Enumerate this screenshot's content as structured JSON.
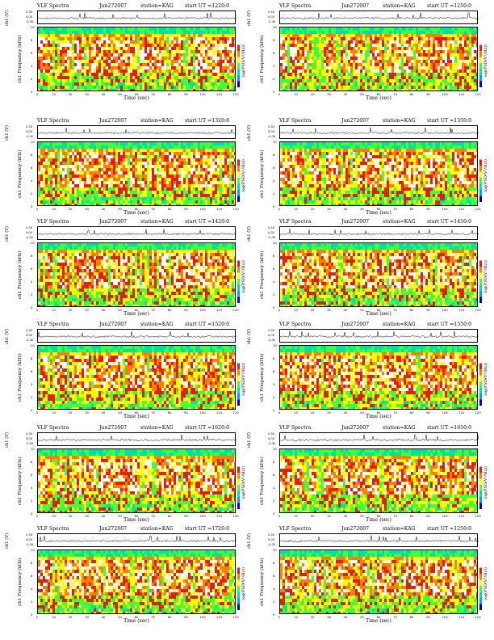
{
  "chart_data": {
    "type": "heatmap",
    "panel_title": "VLF Spectra",
    "timeseries_ylabel": "ch1 (V)",
    "timeseries_ticks": [
      "0.30",
      "0.00",
      "-0.30"
    ],
    "spectrogram_ylabel": "ch1 Frequency (kHz)",
    "frequency_ticks": [
      "0",
      "2",
      "4",
      "6",
      "8",
      "10"
    ],
    "xlabel": "Time (sec)",
    "x_ticks": [
      "0",
      "10",
      "20",
      "30",
      "40",
      "50",
      "60",
      "70",
      "80",
      "90",
      "100",
      "110",
      "120"
    ],
    "xlim": [
      0,
      120
    ],
    "ylim": [
      0,
      10
    ],
    "colorbar_label": "log(PSD(V²/Hz))",
    "colormap": [
      "#0000c0",
      "#00a0ff",
      "#00e0a0",
      "#40ff40",
      "#ffff00",
      "#ff8000",
      "#e02010",
      "#ffffff"
    ],
    "panels": [
      {
        "date": "Jun272007",
        "station": "station=KAG",
        "start": "start UT =1220:0"
      },
      {
        "date": "Jun272007",
        "station": "station=KAG",
        "start": "start UT =1250:0"
      },
      {
        "date": "Jun272007",
        "station": "station=KAG",
        "start": "start UT =1320:0"
      },
      {
        "date": "Jun272007",
        "station": "station=KAG",
        "start": "start UT =1350:0"
      },
      {
        "date": "Jun272007",
        "station": "station=KAG",
        "start": "start UT =1420:0"
      },
      {
        "date": "Jun272007",
        "station": "station=KAG",
        "start": "start UT =1450:0"
      },
      {
        "date": "Jun272007",
        "station": "station=KAG",
        "start": "start UT =1520:0"
      },
      {
        "date": "Jun272007",
        "station": "station=KAG",
        "start": "start UT =1550:0"
      },
      {
        "date": "Jun272007",
        "station": "station=KAG",
        "start": "start UT =1620:0"
      },
      {
        "date": "Jun272007",
        "station": "station=KAG",
        "start": "start UT =1650:0"
      },
      {
        "date": "Jun272007",
        "station": "station=KAG",
        "start": "start UT =1720:0"
      },
      {
        "date": "Jun272007",
        "station": "station=KAG",
        "start": "start UT =1250:0"
      }
    ]
  }
}
